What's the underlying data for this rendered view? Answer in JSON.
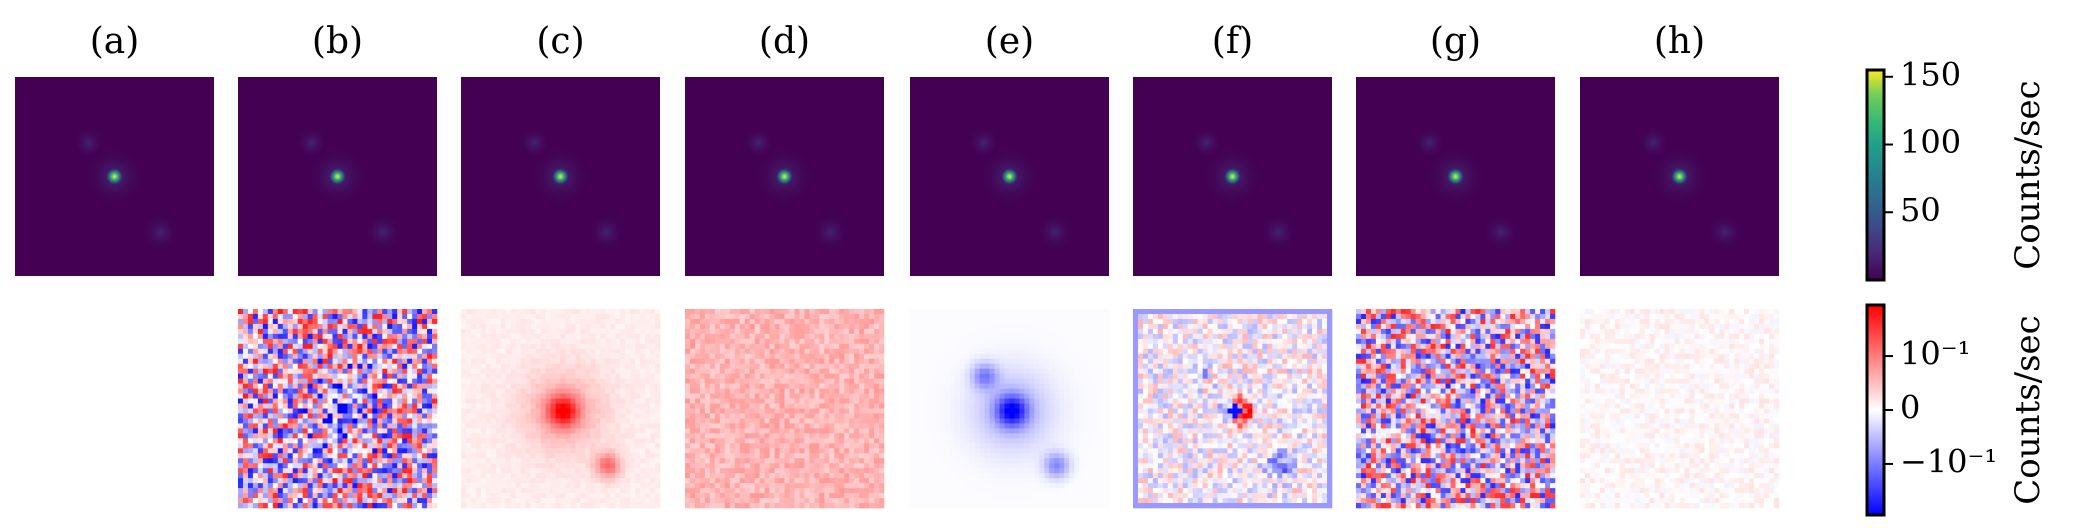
{
  "chart_data": {
    "type": "image",
    "panels": [
      "(a)",
      "(b)",
      "(c)",
      "(d)",
      "(e)",
      "(f)",
      "(g)",
      "(h)"
    ],
    "colorbar": {
      "label": "Counts/sec",
      "lim": [
        0,
        155
      ],
      "ticks": [
        50,
        100,
        150
      ],
      "colormap": "viridis"
    },
    "residual_colorbar": {
      "label": "Counts/sec",
      "lim": [
        -10,
        10
      ],
      "scale": "symlog",
      "linthresh": 0.01,
      "ticks": [
        {
          "value": 0.1,
          "label": "10⁻¹"
        },
        0,
        {
          "value": -0.1,
          "label": "−10⁻¹"
        }
      ],
      "colormap": "bwr"
    }
  }
}
